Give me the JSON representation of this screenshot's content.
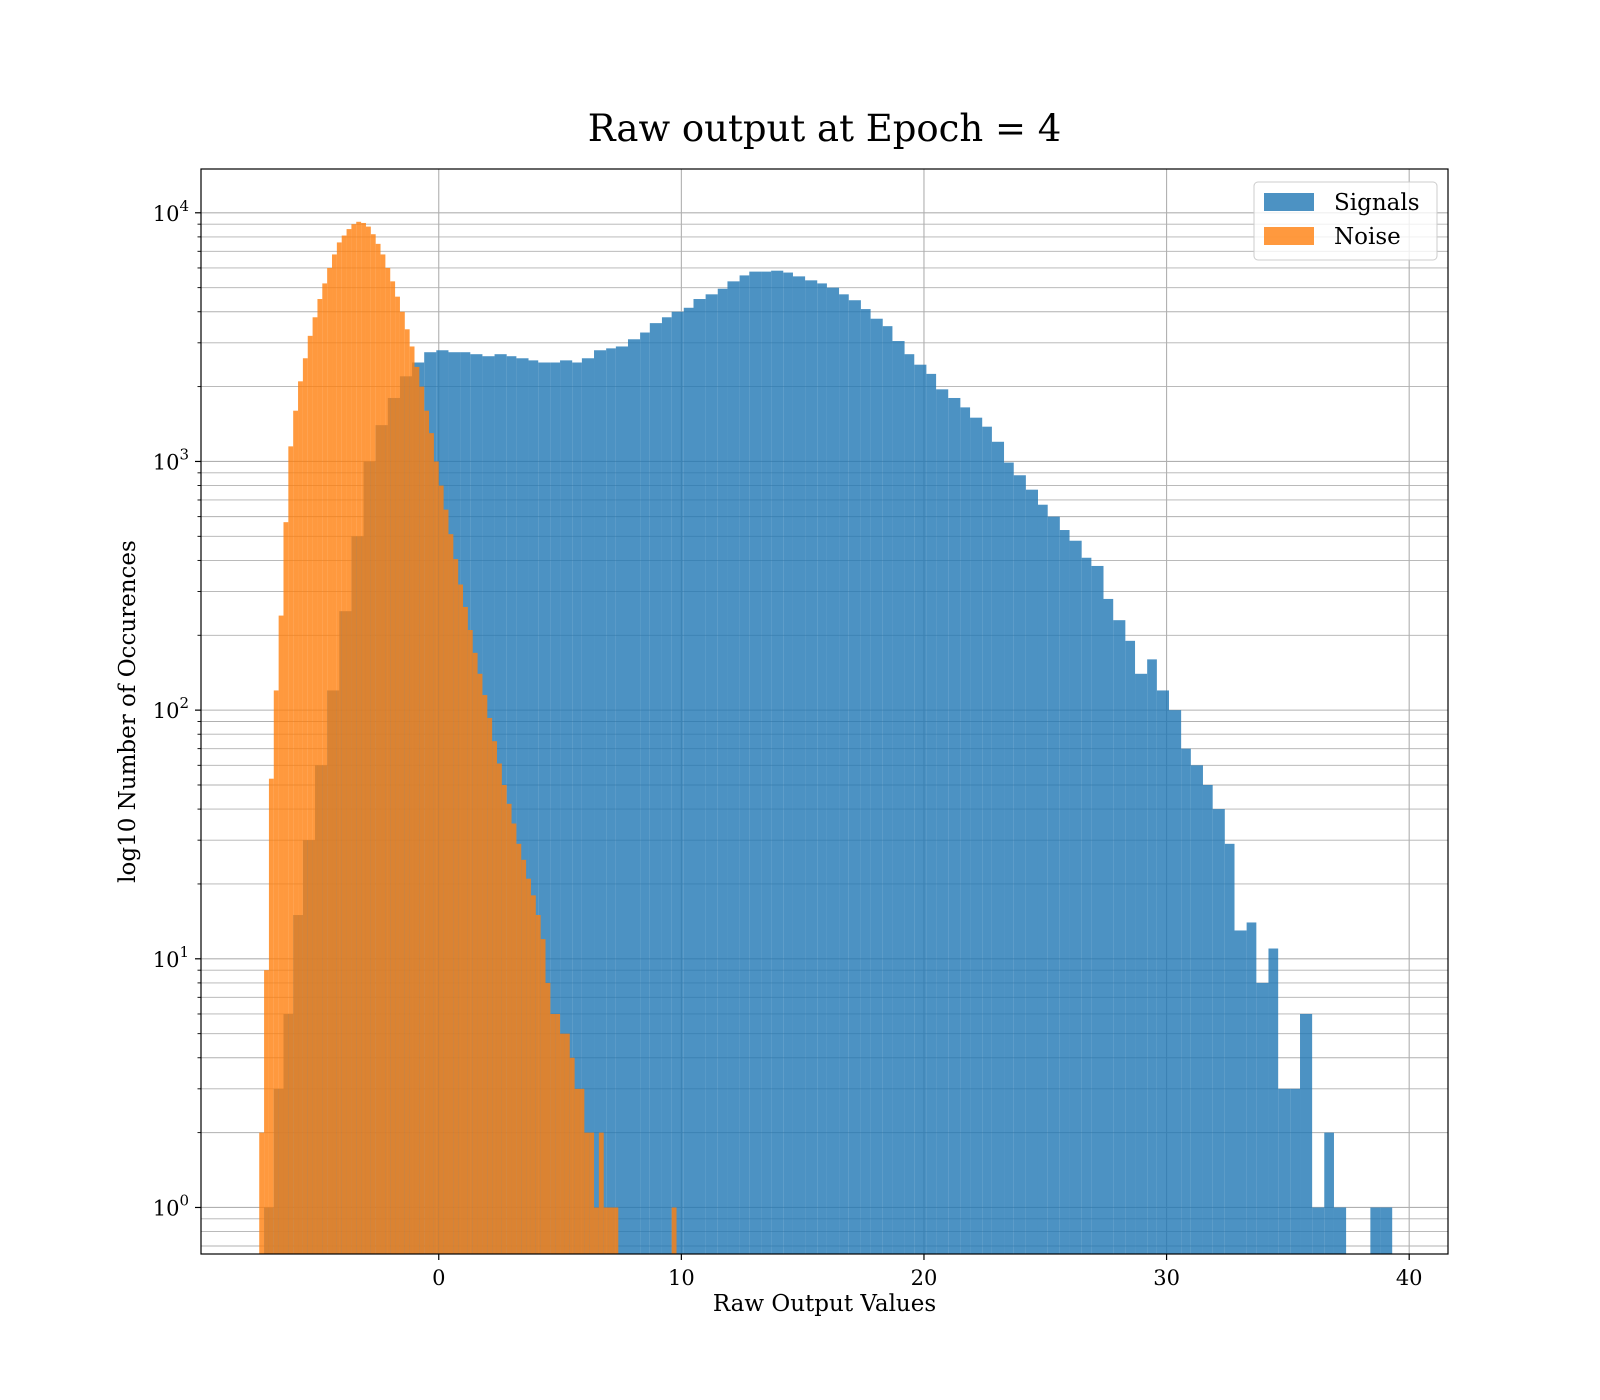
{
  "chart_data": {
    "type": "histogram",
    "title": "Raw output at Epoch = 4",
    "xlabel": "Raw Output Values",
    "ylabel": "log10 Number of Occurences",
    "xlim": [
      -9.8,
      41.6
    ],
    "ylim": [
      0.65,
      15000
    ],
    "yscale": "log",
    "grid": true,
    "legend_position": "top-right",
    "x_ticks": [
      0,
      10,
      20,
      30,
      40
    ],
    "y_ticks": [
      {
        "base": "10",
        "exp": "0",
        "value": 1
      },
      {
        "base": "10",
        "exp": "1",
        "value": 10
      },
      {
        "base": "10",
        "exp": "2",
        "value": 100
      },
      {
        "base": "10",
        "exp": "3",
        "value": 1000
      },
      {
        "base": "10",
        "exp": "4",
        "value": 10000
      }
    ],
    "series": [
      {
        "name": "Signals",
        "color": "#1f77b4",
        "opacity": 0.8,
        "bins": [
          [
            -7.2,
            -6.8,
            1
          ],
          [
            -6.8,
            -6.4,
            3
          ],
          [
            -6.4,
            -6.0,
            6
          ],
          [
            -6.0,
            -5.6,
            15
          ],
          [
            -5.6,
            -5.1,
            30
          ],
          [
            -5.1,
            -4.6,
            60
          ],
          [
            -4.6,
            -4.1,
            120
          ],
          [
            -4.1,
            -3.6,
            250
          ],
          [
            -3.6,
            -3.1,
            500
          ],
          [
            -3.1,
            -2.6,
            1000
          ],
          [
            -2.6,
            -2.1,
            1400
          ],
          [
            -2.1,
            -1.6,
            1800
          ],
          [
            -1.6,
            -1.1,
            2200
          ],
          [
            -1.1,
            -0.6,
            2500
          ],
          [
            -0.6,
            -0.1,
            2750
          ],
          [
            -0.1,
            0.4,
            2800
          ],
          [
            0.4,
            0.9,
            2750
          ],
          [
            0.9,
            1.3,
            2750
          ],
          [
            1.3,
            1.8,
            2700
          ],
          [
            1.8,
            2.3,
            2650
          ],
          [
            2.3,
            2.8,
            2700
          ],
          [
            2.8,
            3.2,
            2650
          ],
          [
            3.2,
            3.7,
            2600
          ],
          [
            3.7,
            4.1,
            2550
          ],
          [
            4.1,
            4.6,
            2500
          ],
          [
            4.6,
            5.0,
            2500
          ],
          [
            5.0,
            5.5,
            2550
          ],
          [
            5.5,
            5.9,
            2500
          ],
          [
            5.9,
            6.4,
            2600
          ],
          [
            6.4,
            6.9,
            2800
          ],
          [
            6.9,
            7.3,
            2850
          ],
          [
            7.3,
            7.8,
            2900
          ],
          [
            7.8,
            8.3,
            3100
          ],
          [
            8.3,
            8.7,
            3300
          ],
          [
            8.7,
            9.2,
            3600
          ],
          [
            9.2,
            9.6,
            3800
          ],
          [
            9.6,
            10.1,
            4000
          ],
          [
            10.1,
            10.5,
            4150
          ],
          [
            10.5,
            11.0,
            4500
          ],
          [
            11.0,
            11.5,
            4700
          ],
          [
            11.5,
            11.9,
            4950
          ],
          [
            11.9,
            12.4,
            5300
          ],
          [
            12.4,
            12.8,
            5600
          ],
          [
            12.8,
            13.3,
            5800
          ],
          [
            13.3,
            13.7,
            5800
          ],
          [
            13.7,
            14.2,
            5850
          ],
          [
            14.2,
            14.6,
            5750
          ],
          [
            14.6,
            15.1,
            5550
          ],
          [
            15.1,
            15.6,
            5350
          ],
          [
            15.6,
            16.0,
            5200
          ],
          [
            16.0,
            16.5,
            5000
          ],
          [
            16.5,
            16.9,
            4700
          ],
          [
            16.9,
            17.4,
            4450
          ],
          [
            17.4,
            17.8,
            4100
          ],
          [
            17.8,
            18.3,
            3750
          ],
          [
            18.3,
            18.7,
            3500
          ],
          [
            18.7,
            19.2,
            3050
          ],
          [
            19.2,
            19.6,
            2700
          ],
          [
            19.6,
            20.1,
            2450
          ],
          [
            20.1,
            20.5,
            2250
          ],
          [
            20.5,
            21.0,
            1950
          ],
          [
            21.0,
            21.5,
            1800
          ],
          [
            21.5,
            21.9,
            1650
          ],
          [
            21.9,
            22.4,
            1500
          ],
          [
            22.4,
            22.8,
            1380
          ],
          [
            22.8,
            23.3,
            1200
          ],
          [
            23.3,
            23.7,
            990
          ],
          [
            23.7,
            24.2,
            880
          ],
          [
            24.2,
            24.7,
            770
          ],
          [
            24.7,
            25.1,
            670
          ],
          [
            25.1,
            25.6,
            600
          ],
          [
            25.6,
            26.0,
            530
          ],
          [
            26.0,
            26.5,
            480
          ],
          [
            26.5,
            26.9,
            410
          ],
          [
            26.9,
            27.4,
            380
          ],
          [
            27.4,
            27.8,
            280
          ],
          [
            27.8,
            28.3,
            230
          ],
          [
            28.3,
            28.7,
            190
          ],
          [
            28.7,
            29.2,
            140
          ],
          [
            29.2,
            29.6,
            160
          ],
          [
            29.6,
            30.1,
            120
          ],
          [
            30.1,
            30.6,
            100
          ],
          [
            30.6,
            31.0,
            70
          ],
          [
            31.0,
            31.5,
            60
          ],
          [
            31.5,
            31.9,
            50
          ],
          [
            31.9,
            32.4,
            40
          ],
          [
            32.4,
            32.8,
            29
          ],
          [
            32.8,
            33.3,
            13
          ],
          [
            33.3,
            33.7,
            14
          ],
          [
            33.7,
            34.2,
            8
          ],
          [
            34.2,
            34.6,
            11
          ],
          [
            34.6,
            35.1,
            3
          ],
          [
            35.1,
            35.5,
            3
          ],
          [
            35.5,
            36.0,
            6
          ],
          [
            36.0,
            36.5,
            1
          ],
          [
            36.5,
            36.9,
            2
          ],
          [
            36.9,
            37.4,
            1
          ],
          [
            38.4,
            38.8,
            1
          ],
          [
            38.8,
            39.3,
            1
          ]
        ]
      },
      {
        "name": "Noise",
        "color": "#ff7f0e",
        "opacity": 0.8,
        "bins": [
          [
            -7.4,
            -7.2,
            2
          ],
          [
            -7.2,
            -7.0,
            9
          ],
          [
            -7.0,
            -6.8,
            53
          ],
          [
            -6.8,
            -6.6,
            120
          ],
          [
            -6.6,
            -6.4,
            240
          ],
          [
            -6.4,
            -6.2,
            570
          ],
          [
            -6.2,
            -6.0,
            1150
          ],
          [
            -6.0,
            -5.8,
            1600
          ],
          [
            -5.8,
            -5.6,
            2100
          ],
          [
            -5.6,
            -5.4,
            2600
          ],
          [
            -5.4,
            -5.2,
            3200
          ],
          [
            -5.2,
            -5.0,
            3800
          ],
          [
            -5.0,
            -4.8,
            4500
          ],
          [
            -4.8,
            -4.6,
            5200
          ],
          [
            -4.6,
            -4.4,
            6000
          ],
          [
            -4.4,
            -4.2,
            6800
          ],
          [
            -4.2,
            -4.0,
            7600
          ],
          [
            -4.0,
            -3.8,
            8100
          ],
          [
            -3.8,
            -3.6,
            8600
          ],
          [
            -3.6,
            -3.4,
            9000
          ],
          [
            -3.4,
            -3.2,
            9200
          ],
          [
            -3.2,
            -3.0,
            9100
          ],
          [
            -3.0,
            -2.8,
            8800
          ],
          [
            -2.8,
            -2.6,
            8200
          ],
          [
            -2.6,
            -2.4,
            7500
          ],
          [
            -2.4,
            -2.2,
            6800
          ],
          [
            -2.2,
            -2.0,
            6000
          ],
          [
            -2.0,
            -1.8,
            5300
          ],
          [
            -1.8,
            -1.6,
            4600
          ],
          [
            -1.6,
            -1.4,
            4000
          ],
          [
            -1.4,
            -1.2,
            3400
          ],
          [
            -1.2,
            -1.0,
            2900
          ],
          [
            -1.0,
            -0.8,
            2400
          ],
          [
            -0.8,
            -0.6,
            2000
          ],
          [
            -0.6,
            -0.4,
            1600
          ],
          [
            -0.4,
            -0.2,
            1300
          ],
          [
            -0.2,
            0.0,
            1000
          ],
          [
            0.0,
            0.2,
            800
          ],
          [
            0.2,
            0.4,
            640
          ],
          [
            0.4,
            0.6,
            510
          ],
          [
            0.6,
            0.8,
            405
          ],
          [
            0.8,
            1.0,
            320
          ],
          [
            1.0,
            1.2,
            260
          ],
          [
            1.2,
            1.4,
            210
          ],
          [
            1.4,
            1.6,
            170
          ],
          [
            1.6,
            1.8,
            140
          ],
          [
            1.8,
            2.0,
            115
          ],
          [
            2.0,
            2.2,
            93
          ],
          [
            2.2,
            2.4,
            75
          ],
          [
            2.4,
            2.6,
            61
          ],
          [
            2.6,
            2.8,
            50
          ],
          [
            2.8,
            3.0,
            42
          ],
          [
            3.0,
            3.2,
            35
          ],
          [
            3.2,
            3.4,
            29
          ],
          [
            3.4,
            3.6,
            25
          ],
          [
            3.6,
            3.8,
            21
          ],
          [
            3.8,
            4.0,
            18
          ],
          [
            4.0,
            4.2,
            15
          ],
          [
            4.2,
            4.4,
            12
          ],
          [
            4.4,
            4.6,
            8
          ],
          [
            4.6,
            4.8,
            6
          ],
          [
            4.8,
            5.0,
            6
          ],
          [
            5.0,
            5.2,
            5
          ],
          [
            5.2,
            5.4,
            5
          ],
          [
            5.4,
            5.6,
            4
          ],
          [
            5.6,
            5.8,
            3
          ],
          [
            5.8,
            6.0,
            3
          ],
          [
            6.0,
            6.2,
            2
          ],
          [
            6.2,
            6.4,
            2
          ],
          [
            6.4,
            6.6,
            1
          ],
          [
            6.6,
            6.8,
            2
          ],
          [
            6.8,
            7.0,
            1
          ],
          [
            7.0,
            7.2,
            1
          ],
          [
            7.2,
            7.4,
            1
          ],
          [
            9.6,
            9.8,
            1
          ]
        ]
      }
    ]
  }
}
